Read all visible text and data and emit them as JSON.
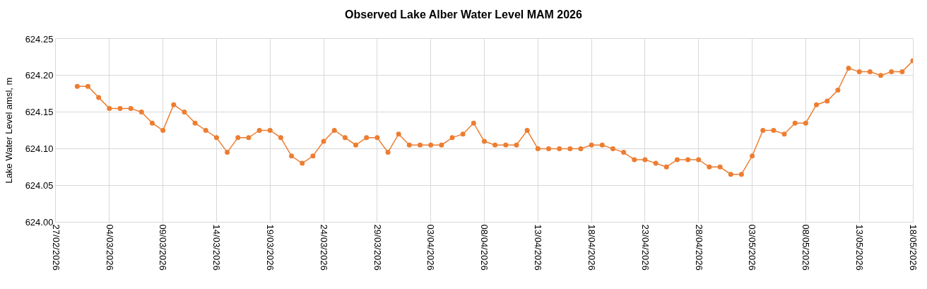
{
  "chart_data": {
    "type": "line",
    "title": "Observed Lake Alber Water Level MAM 2026",
    "ylabel": "Lake Water Level amsl, m",
    "x": [
      "2026-03-01",
      "2026-03-02",
      "2026-03-03",
      "2026-03-04",
      "2026-03-05",
      "2026-03-06",
      "2026-03-07",
      "2026-03-08",
      "2026-03-09",
      "2026-03-10",
      "2026-03-11",
      "2026-03-12",
      "2026-03-13",
      "2026-03-14",
      "2026-03-15",
      "2026-03-16",
      "2026-03-17",
      "2026-03-18",
      "2026-03-19",
      "2026-03-20",
      "2026-03-21",
      "2026-03-22",
      "2026-03-23",
      "2026-03-24",
      "2026-03-25",
      "2026-03-26",
      "2026-03-27",
      "2026-03-28",
      "2026-03-29",
      "2026-03-30",
      "2026-03-31",
      "2026-04-01",
      "2026-04-02",
      "2026-04-03",
      "2026-04-04",
      "2026-04-05",
      "2026-04-06",
      "2026-04-07",
      "2026-04-08",
      "2026-04-09",
      "2026-04-10",
      "2026-04-11",
      "2026-04-12",
      "2026-04-13",
      "2026-04-14",
      "2026-04-15",
      "2026-04-16",
      "2026-04-17",
      "2026-04-18",
      "2026-04-19",
      "2026-04-20",
      "2026-04-21",
      "2026-04-22",
      "2026-04-23",
      "2026-04-24",
      "2026-04-25",
      "2026-04-26",
      "2026-04-27",
      "2026-04-28",
      "2026-04-29",
      "2026-04-30",
      "2026-05-01",
      "2026-05-02",
      "2026-05-03",
      "2026-05-04",
      "2026-05-05",
      "2026-05-06",
      "2026-05-07",
      "2026-05-08",
      "2026-05-09",
      "2026-05-10",
      "2026-05-11",
      "2026-05-12",
      "2026-05-13",
      "2026-05-14",
      "2026-05-15",
      "2026-05-16",
      "2026-05-17",
      "2026-05-18"
    ],
    "series": [
      {
        "color": "#ed7d31",
        "values": [
          624.185,
          624.185,
          624.17,
          624.155,
          624.155,
          624.155,
          624.15,
          624.135,
          624.125,
          624.16,
          624.15,
          624.135,
          624.125,
          624.115,
          624.095,
          624.115,
          624.115,
          624.125,
          624.125,
          624.115,
          624.09,
          624.08,
          624.09,
          624.11,
          624.125,
          624.115,
          624.105,
          624.115,
          624.115,
          624.095,
          624.12,
          624.105,
          624.105,
          624.105,
          624.105,
          624.115,
          624.12,
          624.135,
          624.11,
          624.105,
          624.105,
          624.105,
          624.125,
          624.1,
          624.1,
          624.1,
          624.1,
          624.1,
          624.105,
          624.105,
          624.1,
          624.095,
          624.085,
          624.085,
          624.08,
          624.075,
          624.085,
          624.085,
          624.085,
          624.075,
          624.075,
          624.065,
          624.065,
          624.09,
          624.125,
          624.125,
          624.12,
          624.135,
          624.135,
          624.16,
          624.165,
          624.18,
          624.21,
          624.205,
          624.205,
          624.2,
          624.205,
          624.205,
          624.22
        ]
      }
    ],
    "xlim": [
      "2026-02-27",
      "2026-05-18"
    ],
    "xticks": [
      {
        "value": "2026-02-27",
        "label": "27/02/2026"
      },
      {
        "value": "2026-03-04",
        "label": "04/03/2026"
      },
      {
        "value": "2026-03-09",
        "label": "09/03/2026"
      },
      {
        "value": "2026-03-14",
        "label": "14/03/2026"
      },
      {
        "value": "2026-03-19",
        "label": "19/03/2026"
      },
      {
        "value": "2026-03-24",
        "label": "24/03/2026"
      },
      {
        "value": "2026-03-29",
        "label": "29/03/2026"
      },
      {
        "value": "2026-04-03",
        "label": "03/04/2026"
      },
      {
        "value": "2026-04-08",
        "label": "08/04/2026"
      },
      {
        "value": "2026-04-13",
        "label": "13/04/2026"
      },
      {
        "value": "2026-04-18",
        "label": "18/04/2026"
      },
      {
        "value": "2026-04-23",
        "label": "23/04/2026"
      },
      {
        "value": "2026-04-28",
        "label": "28/04/2026"
      },
      {
        "value": "2026-05-03",
        "label": "03/05/2026"
      },
      {
        "value": "2026-05-08",
        "label": "08/05/2026"
      },
      {
        "value": "2026-05-13",
        "label": "13/05/2026"
      },
      {
        "value": "2026-05-18",
        "label": "18/05/2026"
      }
    ],
    "ylim": [
      624.0,
      624.25
    ],
    "yticks": [
      {
        "value": 624.0,
        "label": "624.00"
      },
      {
        "value": 624.05,
        "label": "624.05"
      },
      {
        "value": 624.1,
        "label": "624.10"
      },
      {
        "value": 624.15,
        "label": "624.15"
      },
      {
        "value": 624.2,
        "label": "624.20"
      },
      {
        "value": 624.25,
        "label": "624.25"
      }
    ],
    "grid": true,
    "marker": "circle",
    "line_style": "solid"
  }
}
